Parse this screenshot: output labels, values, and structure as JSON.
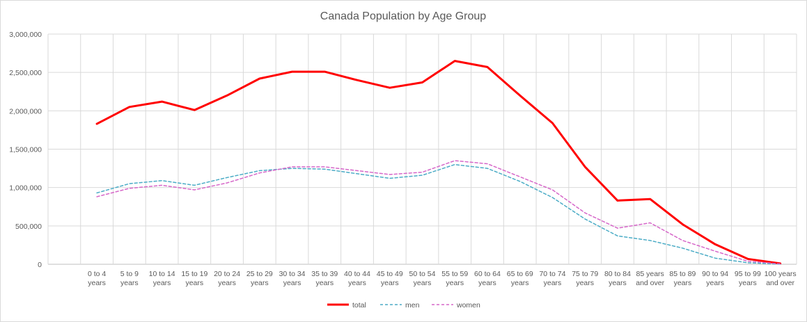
{
  "chart_data": {
    "type": "line",
    "title": "Canada Population by Age Group",
    "categories": [
      [
        "0 to 4",
        "years"
      ],
      [
        "5 to 9",
        "years"
      ],
      [
        "10 to 14",
        "years"
      ],
      [
        "15 to 19",
        "years"
      ],
      [
        "20 to 24",
        "years"
      ],
      [
        "25 to 29",
        "years"
      ],
      [
        "30 to 34",
        "years"
      ],
      [
        "35 to 39",
        "years"
      ],
      [
        "40 to 44",
        "years"
      ],
      [
        "45 to 49",
        "years"
      ],
      [
        "50 to 54",
        "years"
      ],
      [
        "55 to 59",
        "years"
      ],
      [
        "60 to 64",
        "years"
      ],
      [
        "65 to 69",
        "years"
      ],
      [
        "70 to 74",
        "years"
      ],
      [
        "75 to 79",
        "years"
      ],
      [
        "80 to 84",
        "years"
      ],
      [
        "85 years",
        "and over"
      ],
      [
        "85 to 89",
        "years"
      ],
      [
        "90 to 94",
        "years"
      ],
      [
        "95 to 99",
        "years"
      ],
      [
        "100 years",
        "and over"
      ]
    ],
    "ylim": [
      0,
      3000000
    ],
    "yticks": [
      0,
      500000,
      1000000,
      1500000,
      2000000,
      2500000,
      3000000
    ],
    "ytick_labels": [
      "0",
      "500,000",
      "1,000,000",
      "1,500,000",
      "2,000,000",
      "2,500,000",
      "3,000,000"
    ],
    "grid": true,
    "legend_position": "bottom",
    "series": [
      {
        "name": "total",
        "color": "#ff0000",
        "dash": "solid",
        "values": [
          1830000,
          2050000,
          2120000,
          2010000,
          2200000,
          2420000,
          2510000,
          2510000,
          2400000,
          2300000,
          2370000,
          2650000,
          2570000,
          2200000,
          1840000,
          1270000,
          830000,
          850000,
          520000,
          260000,
          70000,
          10000
        ]
      },
      {
        "name": "men",
        "color": "#4bacc6",
        "dash": "dashed",
        "values": [
          930000,
          1050000,
          1090000,
          1030000,
          1130000,
          1220000,
          1250000,
          1240000,
          1180000,
          1120000,
          1160000,
          1300000,
          1250000,
          1080000,
          870000,
          590000,
          370000,
          310000,
          210000,
          80000,
          20000,
          2000
        ]
      },
      {
        "name": "women",
        "color": "#d667c9",
        "dash": "dashed",
        "values": [
          880000,
          990000,
          1030000,
          970000,
          1060000,
          1190000,
          1270000,
          1270000,
          1220000,
          1170000,
          1200000,
          1350000,
          1310000,
          1140000,
          970000,
          670000,
          470000,
          540000,
          310000,
          170000,
          40000,
          5000
        ]
      }
    ]
  }
}
